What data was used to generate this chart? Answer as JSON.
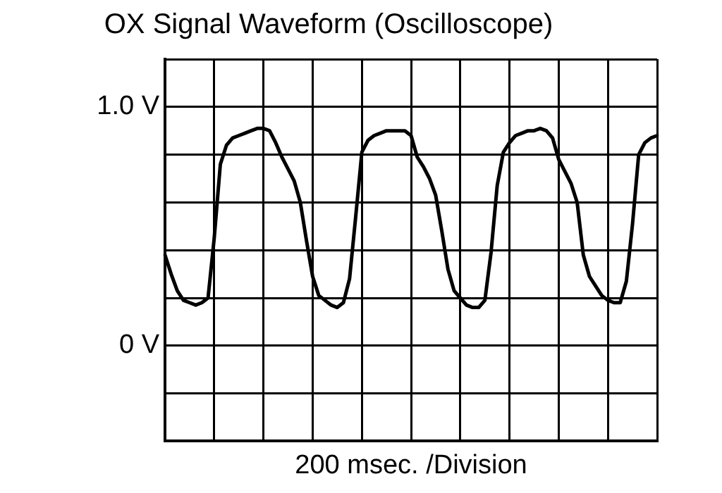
{
  "chart_data": {
    "type": "line",
    "title": "OX Signal Waveform (Oscilloscope)",
    "xlabel": "200 msec. /Division",
    "categories": [
      null,
      null,
      null,
      null,
      null,
      null,
      null,
      null,
      null,
      null,
      null,
      null,
      null,
      null,
      null,
      null,
      null,
      null,
      null,
      null,
      null,
      null,
      null,
      null,
      null,
      null,
      null,
      null,
      null,
      null,
      null,
      null,
      null,
      null,
      null,
      null,
      null,
      null,
      null,
      null,
      null,
      null,
      null,
      null,
      null,
      null,
      null,
      null,
      null,
      null,
      null,
      null,
      null,
      null,
      null,
      null,
      null,
      null,
      null,
      null,
      null,
      null,
      null,
      null,
      null,
      null,
      null,
      null,
      null,
      null,
      null,
      null,
      null,
      null,
      null,
      null,
      null,
      null,
      null,
      null,
      null
    ],
    "ylim": [
      -0.4,
      1.2
    ],
    "yticks": [
      {
        "value": -0.4,
        "label": null
      },
      {
        "value": -0.2,
        "label": null
      },
      {
        "value": 0,
        "label": "0 V"
      },
      {
        "value": 0.2,
        "label": null
      },
      {
        "value": 0.4,
        "label": null
      },
      {
        "value": 0.6,
        "label": null
      },
      {
        "value": 0.8,
        "label": null
      },
      {
        "value": 1.0,
        "label": "1.0 V"
      },
      {
        "value": 1.2,
        "label": null
      }
    ],
    "tick_labels": "y",
    "grid": true,
    "marker": "none",
    "line_style": "solid",
    "legend": false,
    "series": [
      {
        "color": "#000000",
        "values": [
          0.38,
          0.3,
          0.23,
          0.19,
          0.18,
          0.17,
          0.18,
          0.2,
          0.45,
          0.76,
          0.84,
          0.87,
          0.88,
          0.89,
          0.9,
          0.91,
          0.91,
          0.9,
          0.85,
          0.79,
          0.74,
          0.69,
          0.6,
          0.44,
          0.29,
          0.21,
          0.19,
          0.17,
          0.16,
          0.18,
          0.28,
          0.54,
          0.81,
          0.86,
          0.88,
          0.89,
          0.9,
          0.9,
          0.9,
          0.9,
          0.88,
          0.79,
          0.75,
          0.7,
          0.63,
          0.48,
          0.32,
          0.23,
          0.2,
          0.17,
          0.16,
          0.16,
          0.19,
          0.39,
          0.67,
          0.81,
          0.85,
          0.88,
          0.89,
          0.9,
          0.9,
          0.91,
          0.9,
          0.87,
          0.78,
          0.73,
          0.68,
          0.6,
          0.38,
          0.29,
          0.25,
          0.21,
          0.19,
          0.18,
          0.18,
          0.27,
          0.51,
          0.8,
          0.85,
          0.87,
          0.88
        ]
      }
    ]
  }
}
